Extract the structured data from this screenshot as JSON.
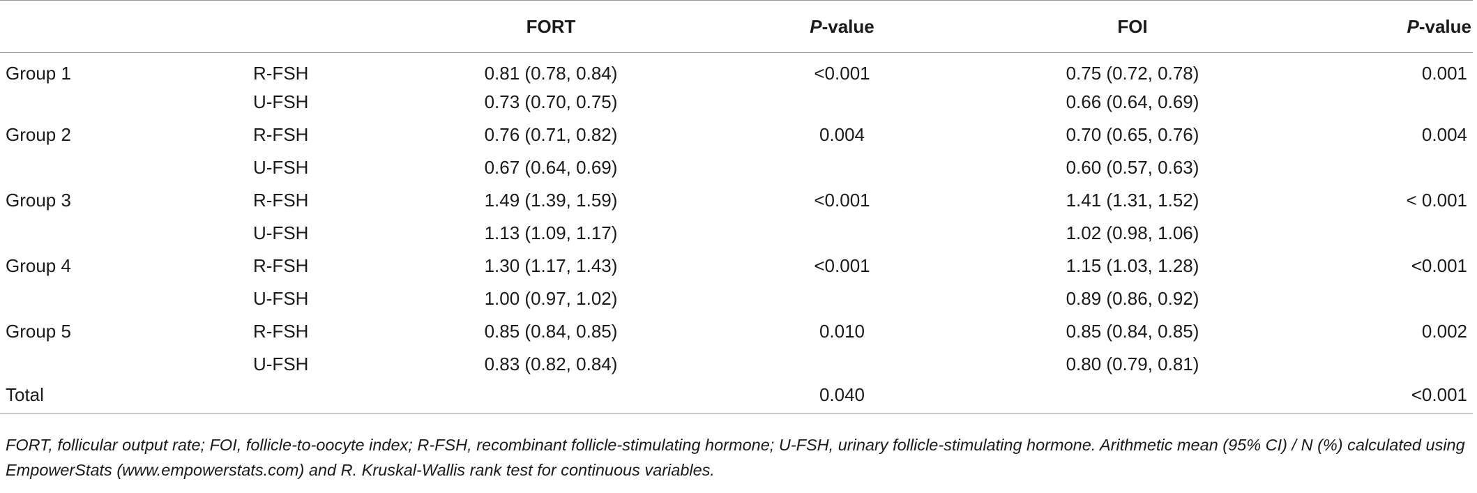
{
  "table": {
    "headers": {
      "group": "",
      "sub": "",
      "fort": "FORT",
      "p1_italic": "P",
      "p1_rest": "-value",
      "foi": "FOI",
      "p2_italic": "P",
      "p2_rest": "-value"
    },
    "rows": [
      {
        "group": "Group 1",
        "sub": "R-FSH",
        "fort": "0.81 (0.78, 0.84)",
        "p1": "<0.001",
        "foi": "0.75 (0.72, 0.78)",
        "p2": "0.001"
      },
      {
        "group": "",
        "sub": "U-FSH",
        "fort": "0.73 (0.70, 0.75)",
        "p1": "",
        "foi": "0.66 (0.64, 0.69)",
        "p2": ""
      },
      {
        "group": "Group 2",
        "sub": "R-FSH",
        "fort": "0.76 (0.71, 0.82)",
        "p1": "0.004",
        "foi": "0.70 (0.65, 0.76)",
        "p2": "0.004"
      },
      {
        "group": "",
        "sub": "U-FSH",
        "fort": "0.67 (0.64, 0.69)",
        "p1": "",
        "foi": "0.60 (0.57, 0.63)",
        "p2": ""
      },
      {
        "group": "Group 3",
        "sub": "R-FSH",
        "fort": "1.49 (1.39, 1.59)",
        "p1": "<0.001",
        "foi": "1.41 (1.31, 1.52)",
        "p2": "< 0.001"
      },
      {
        "group": "",
        "sub": "U-FSH",
        "fort": "1.13 (1.09, 1.17)",
        "p1": "",
        "foi": "1.02 (0.98, 1.06)",
        "p2": ""
      },
      {
        "group": "Group 4",
        "sub": "R-FSH",
        "fort": "1.30 (1.17, 1.43)",
        "p1": "<0.001",
        "foi": "1.15 (1.03, 1.28)",
        "p2": "<0.001"
      },
      {
        "group": "",
        "sub": "U-FSH",
        "fort": "1.00 (0.97, 1.02)",
        "p1": "",
        "foi": "0.89 (0.86, 0.92)",
        "p2": ""
      },
      {
        "group": "Group 5",
        "sub": "R-FSH",
        "fort": "0.85 (0.84, 0.85)",
        "p1": "0.010",
        "foi": "0.85 (0.84, 0.85)",
        "p2": "0.002"
      },
      {
        "group": "",
        "sub": "U-FSH",
        "fort": "0.83 (0.82, 0.84)",
        "p1": "",
        "foi": "0.80 (0.79, 0.81)",
        "p2": ""
      },
      {
        "group": "Total",
        "sub": "",
        "fort": "",
        "p1": "0.040",
        "foi": "",
        "p2": "<0.001"
      }
    ]
  },
  "footnote": "FORT, follicular output rate; FOI, follicle-to-oocyte index; R-FSH, recombinant follicle-stimulating hormone; U-FSH, urinary follicle-stimulating hormone. Arithmetic mean (95% CI) / N (%) calculated using EmpowerStats (www.empowerstats.com) and R. Kruskal-Wallis rank test for continuous variables."
}
